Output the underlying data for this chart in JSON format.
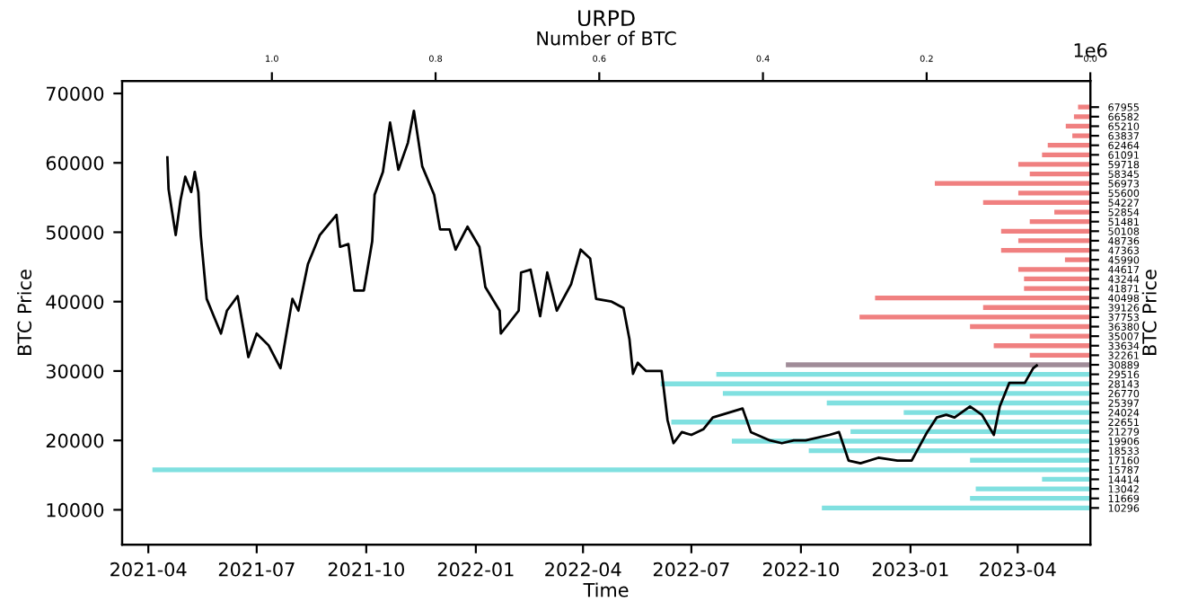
{
  "chart_data": [
    {
      "type": "line",
      "xlabel": "Time",
      "ylabel": "BTC Price",
      "xlim": [
        "2021-03-10",
        "2023-06-01"
      ],
      "xticks": [
        {
          "value": "2021-04-01",
          "label": "2021-04"
        },
        {
          "value": "2021-07-01",
          "label": "2021-07"
        },
        {
          "value": "2021-10-01",
          "label": "2021-10"
        },
        {
          "value": "2022-01-01",
          "label": "2022-01"
        },
        {
          "value": "2022-04-01",
          "label": "2022-04"
        },
        {
          "value": "2022-07-01",
          "label": "2022-07"
        },
        {
          "value": "2022-10-01",
          "label": "2022-10"
        },
        {
          "value": "2023-01-01",
          "label": "2023-01"
        },
        {
          "value": "2023-04-01",
          "label": "2023-04"
        }
      ],
      "ylim": [
        5000,
        71800
      ],
      "yticks": [
        10000,
        20000,
        30000,
        40000,
        50000,
        60000,
        70000
      ],
      "series": [
        {
          "color": "#000000",
          "x": [
            "2021-04-17",
            "2021-04-18",
            "2021-04-24",
            "2021-04-28",
            "2021-05-02",
            "2021-05-07",
            "2021-05-10",
            "2021-05-13",
            "2021-05-15",
            "2021-05-20",
            "2021-05-26",
            "2021-06-01",
            "2021-06-06",
            "2021-06-15",
            "2021-06-24",
            "2021-07-01",
            "2021-07-11",
            "2021-07-21",
            "2021-07-31",
            "2021-08-05",
            "2021-08-13",
            "2021-08-23",
            "2021-09-06",
            "2021-09-09",
            "2021-09-16",
            "2021-09-21",
            "2021-09-29",
            "2021-10-06",
            "2021-10-08",
            "2021-10-15",
            "2021-10-21",
            "2021-10-28",
            "2021-11-05",
            "2021-11-10",
            "2021-11-17",
            "2021-11-27",
            "2021-12-02",
            "2021-12-10",
            "2021-12-15",
            "2021-12-25",
            "2022-01-04",
            "2022-01-09",
            "2022-01-21",
            "2022-01-22",
            "2022-02-06",
            "2022-02-08",
            "2022-02-16",
            "2022-02-24",
            "2022-03-02",
            "2022-03-10",
            "2022-03-22",
            "2022-03-30",
            "2022-04-07",
            "2022-04-12",
            "2022-04-25",
            "2022-05-05",
            "2022-05-10",
            "2022-05-13",
            "2022-05-17",
            "2022-05-24",
            "2022-06-06",
            "2022-06-11",
            "2022-06-16",
            "2022-06-23",
            "2022-07-01",
            "2022-07-11",
            "2022-07-19",
            "2022-08-13",
            "2022-08-20",
            "2022-09-05",
            "2022-09-15",
            "2022-09-25",
            "2022-10-05",
            "2022-10-25",
            "2022-11-02",
            "2022-11-10",
            "2022-11-20",
            "2022-12-05",
            "2022-12-21",
            "2023-01-02",
            "2023-01-15",
            "2023-01-23",
            "2023-01-31",
            "2023-02-07",
            "2023-02-20",
            "2023-03-02",
            "2023-03-12",
            "2023-03-17",
            "2023-03-25",
            "2023-04-07",
            "2023-04-14",
            "2023-04-17"
          ],
          "values": [
            60800,
            56200,
            49600,
            54600,
            58000,
            55800,
            58700,
            55800,
            49600,
            40400,
            37900,
            35400,
            38700,
            40800,
            32000,
            35400,
            33700,
            30400,
            40400,
            38700,
            45400,
            49600,
            52500,
            47900,
            48300,
            41600,
            41600,
            48700,
            55400,
            58700,
            65800,
            59000,
            62900,
            67500,
            59500,
            55400,
            50400,
            50400,
            47500,
            50800,
            47900,
            42100,
            38700,
            35400,
            38700,
            44200,
            44600,
            37900,
            44200,
            38700,
            42500,
            47500,
            46200,
            40400,
            40000,
            39100,
            34600,
            29600,
            31200,
            30000,
            30000,
            22900,
            19600,
            21200,
            20800,
            21600,
            23300,
            24600,
            21200,
            20000,
            19600,
            20000,
            20000,
            20800,
            21200,
            17100,
            16700,
            17500,
            17100,
            17100,
            21200,
            23300,
            23700,
            23300,
            24900,
            23700,
            20800,
            24900,
            28300,
            28300,
            30400,
            30800
          ]
        }
      ]
    },
    {
      "type": "bar",
      "orientation": "horizontal",
      "title": "URPD",
      "xlabel": "Number of BTC",
      "ylabel": "BTC Price",
      "annotations": [
        "1e6"
      ],
      "xlim": [
        1.183,
        0
      ],
      "xticks": [
        {
          "value": 1,
          "label": "1.0"
        },
        0.8,
        0.6,
        0.4,
        0.2,
        {
          "value": 0,
          "label": "0.0"
        }
      ],
      "categories": [
        "67955",
        "66582",
        "65210",
        "63837",
        "62464",
        "61091",
        "59718",
        "58345",
        "56973",
        "55600",
        "54227",
        "52854",
        "51481",
        "50108",
        "48736",
        "47363",
        "45990",
        "44617",
        "43244",
        "41871",
        "40498",
        "39126",
        "37753",
        "36380",
        "35007",
        "33634",
        "32261",
        "30889",
        "29516",
        "28143",
        "26770",
        "25397",
        "24024",
        "22651",
        "21279",
        "19906",
        "18533",
        "17160",
        "15787",
        "14414",
        "13042",
        "11669",
        "10296"
      ],
      "values": [
        0.015,
        0.02,
        0.03,
        0.022,
        0.052,
        0.059,
        0.088,
        0.074,
        0.19,
        0.088,
        0.131,
        0.044,
        0.074,
        0.109,
        0.088,
        0.109,
        0.031,
        0.088,
        0.081,
        0.081,
        0.263,
        0.131,
        0.282,
        0.147,
        0.074,
        0.118,
        0.074,
        0.372,
        0.457,
        0.525,
        0.449,
        0.322,
        0.228,
        0.512,
        0.293,
        0.438,
        0.344,
        0.147,
        1.146,
        0.059,
        0.14,
        0.147,
        0.328
      ],
      "colors": [
        "#f08080",
        "#f08080",
        "#f08080",
        "#f08080",
        "#f08080",
        "#f08080",
        "#f08080",
        "#f08080",
        "#f08080",
        "#f08080",
        "#f08080",
        "#f08080",
        "#f08080",
        "#f08080",
        "#f08080",
        "#f08080",
        "#f08080",
        "#f08080",
        "#f08080",
        "#f08080",
        "#f08080",
        "#f08080",
        "#f08080",
        "#f08080",
        "#f08080",
        "#f08080",
        "#f08080",
        "#a08c98",
        "#80e0e0",
        "#80e0e0",
        "#80e0e0",
        "#80e0e0",
        "#80e0e0",
        "#80e0e0",
        "#80e0e0",
        "#80e0e0",
        "#80e0e0",
        "#80e0e0",
        "#80e0e0",
        "#80e0e0",
        "#80e0e0",
        "#80e0e0",
        "#80e0e0"
      ]
    }
  ]
}
